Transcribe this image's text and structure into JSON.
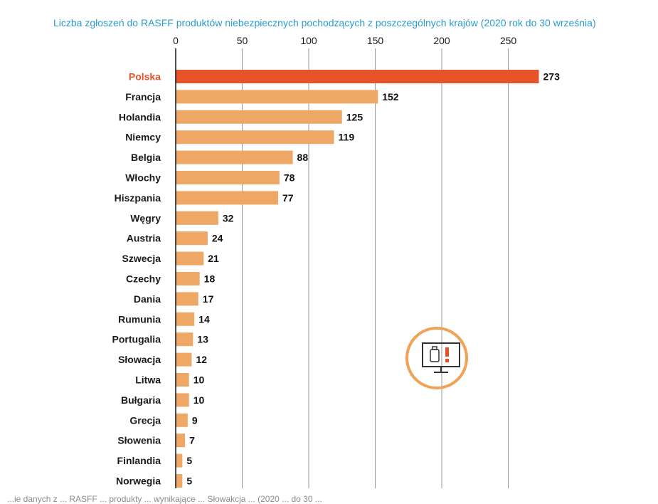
{
  "colors": {
    "highlight": "#e8542a",
    "bar": "#efa766",
    "title": "#2a9bd1",
    "icon": "#f0a257",
    "icon_alert": "#e8542a"
  },
  "icon": {
    "name": "monitor-alert-icon"
  },
  "chart_data": {
    "type": "bar",
    "orientation": "horizontal",
    "title": "Liczba zgłoszeń do RASFF produktów niebezpiecznych pochodzących z poszczególnych krajów (2020 rok do 30 września)",
    "xlim": [
      0,
      275
    ],
    "x_ticks": [
      0,
      50,
      100,
      150,
      200,
      250
    ],
    "grid": true,
    "x_axis_position": "top",
    "highlight_category": "Polska",
    "categories": [
      "Polska",
      "Francja",
      "Holandia",
      "Niemcy",
      "Belgia",
      "Włochy",
      "Hiszpania",
      "Węgry",
      "Austria",
      "Szwecja",
      "Czechy",
      "Dania",
      "Rumunia",
      "Portugalia",
      "Słowacja",
      "Litwa",
      "Bułgaria",
      "Grecja",
      "Słowenia",
      "Finlandia",
      "Norwegia"
    ],
    "values": [
      273,
      152,
      125,
      119,
      88,
      78,
      77,
      32,
      24,
      21,
      18,
      17,
      14,
      13,
      12,
      10,
      10,
      9,
      7,
      5,
      5
    ]
  },
  "footer": "...ie danych z ... RASFF ... produkty ... wynikające ... Słowakcja ... (2020 ... do 30 ..."
}
